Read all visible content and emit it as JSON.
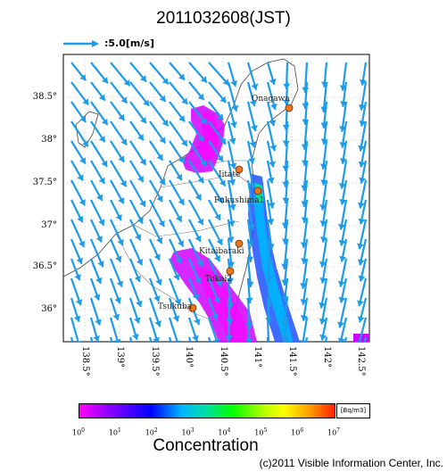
{
  "title": "2011032608(JST)",
  "wind_scale": {
    "label": ":5.0[m/s]",
    "arrow_color": "#1e9be8"
  },
  "map": {
    "lat_labels": [
      "38.5°",
      "38°",
      "37.5°",
      "37°",
      "36.5°",
      "36°"
    ],
    "lon_labels": [
      "138.5°",
      "139°",
      "139.5°",
      "140°",
      "140.5°",
      "141°",
      "141.5°",
      "142°",
      "142.5°"
    ],
    "sites": [
      {
        "name": "Onagawa",
        "label": "Onagawa"
      },
      {
        "name": "Iitate",
        "label": "Iitate"
      },
      {
        "name": "Fukushima1",
        "label": "Fukushima1"
      },
      {
        "name": "Kitaibaraki",
        "label": "Kitaibaraki"
      },
      {
        "name": "Tokai2",
        "label": "Tokai2"
      },
      {
        "name": "Tsukuba",
        "label": "Tsukuba"
      }
    ],
    "site_marker_color": "#e87722",
    "arrow_color": "#1e9be8"
  },
  "colorbar": {
    "unit": "[Bq/m3]",
    "ticks": [
      {
        "base": "10",
        "exp": "0"
      },
      {
        "base": "10",
        "exp": "1"
      },
      {
        "base": "10",
        "exp": "2"
      },
      {
        "base": "10",
        "exp": "3"
      },
      {
        "base": "10",
        "exp": "4"
      },
      {
        "base": "10",
        "exp": "5"
      },
      {
        "base": "10",
        "exp": "6"
      },
      {
        "base": "10",
        "exp": "7"
      }
    ],
    "label": "Concentration",
    "colors": [
      "#ff00ff",
      "#8a00ff",
      "#0000ff",
      "#00b4ff",
      "#00ff00",
      "#ffff00",
      "#ff2000"
    ]
  },
  "copyright": "(c)2011 Visible Information Center, Inc."
}
